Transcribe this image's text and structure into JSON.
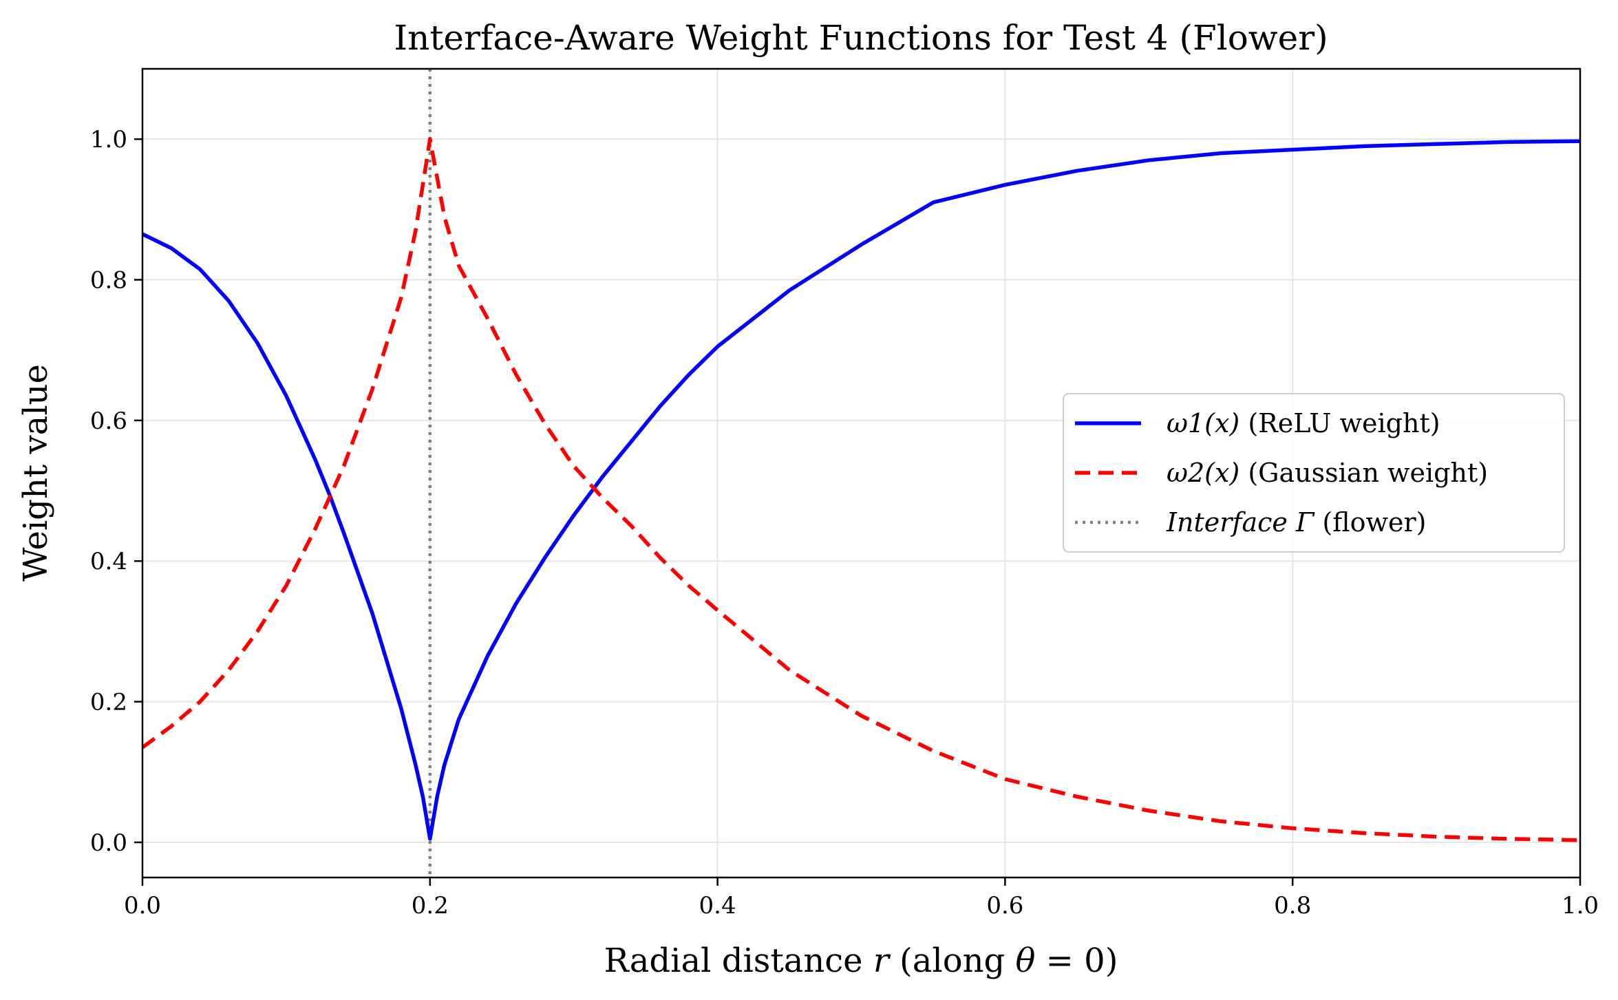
{
  "chart_data": {
    "type": "line",
    "title": "Interface-Aware Weight Functions for Test 4 (Flower)",
    "xlabel": "Radial distance r (along θ = 0)",
    "ylabel": "Weight value",
    "xlim": [
      0.0,
      1.0
    ],
    "ylim": [
      -0.05,
      1.1
    ],
    "xticks": [
      0.0,
      0.2,
      0.4,
      0.6,
      0.8,
      1.0
    ],
    "xtick_labels": [
      "0.0",
      "0.2",
      "0.4",
      "0.6",
      "0.8",
      "1.0"
    ],
    "yticks": [
      0.0,
      0.2,
      0.4,
      0.6,
      0.8,
      1.0
    ],
    "ytick_labels": [
      "0.0",
      "0.2",
      "0.4",
      "0.6",
      "0.8",
      "1.0"
    ],
    "grid": true,
    "legend_position": "center-right",
    "interface_r": 0.2,
    "series": [
      {
        "name": "ω1(x) (ReLU weight)",
        "legend_main": "ω1(x)",
        "legend_desc": "(ReLU weight)",
        "color": "#0000ff",
        "style": "solid",
        "x": [
          0.0,
          0.02,
          0.04,
          0.06,
          0.08,
          0.1,
          0.12,
          0.13,
          0.14,
          0.16,
          0.18,
          0.19,
          0.195,
          0.2,
          0.205,
          0.21,
          0.22,
          0.24,
          0.26,
          0.28,
          0.3,
          0.32,
          0.34,
          0.36,
          0.38,
          0.4,
          0.45,
          0.5,
          0.55,
          0.6,
          0.65,
          0.7,
          0.75,
          0.8,
          0.85,
          0.9,
          0.95,
          1.0
        ],
        "y": [
          0.865,
          0.845,
          0.815,
          0.77,
          0.71,
          0.635,
          0.545,
          0.495,
          0.44,
          0.325,
          0.19,
          0.11,
          0.065,
          0.005,
          0.065,
          0.11,
          0.175,
          0.265,
          0.34,
          0.405,
          0.465,
          0.52,
          0.57,
          0.62,
          0.665,
          0.705,
          0.785,
          0.85,
          0.91,
          0.935,
          0.955,
          0.97,
          0.98,
          0.985,
          0.99,
          0.993,
          0.996,
          0.997
        ]
      },
      {
        "name": "ω2(x) (Gaussian weight)",
        "legend_main": "ω2(x)",
        "legend_desc": "(Gaussian weight)",
        "color": "#ff0000",
        "style": "dashed",
        "x": [
          0.0,
          0.02,
          0.04,
          0.06,
          0.08,
          0.1,
          0.12,
          0.14,
          0.16,
          0.18,
          0.19,
          0.2,
          0.21,
          0.22,
          0.24,
          0.26,
          0.28,
          0.3,
          0.32,
          0.34,
          0.36,
          0.38,
          0.4,
          0.45,
          0.5,
          0.55,
          0.6,
          0.65,
          0.7,
          0.75,
          0.8,
          0.85,
          0.9,
          0.95,
          1.0
        ],
        "y": [
          0.135,
          0.165,
          0.2,
          0.245,
          0.3,
          0.365,
          0.445,
          0.535,
          0.645,
          0.775,
          0.87,
          1.0,
          0.89,
          0.82,
          0.745,
          0.665,
          0.595,
          0.535,
          0.49,
          0.45,
          0.405,
          0.365,
          0.33,
          0.245,
          0.18,
          0.13,
          0.09,
          0.065,
          0.045,
          0.03,
          0.02,
          0.013,
          0.008,
          0.005,
          0.003
        ]
      },
      {
        "name": "Interface Γ (flower)",
        "legend_main": "Interface Γ",
        "legend_desc": "(flower)",
        "color": "#808080",
        "style": "dotted"
      }
    ]
  }
}
